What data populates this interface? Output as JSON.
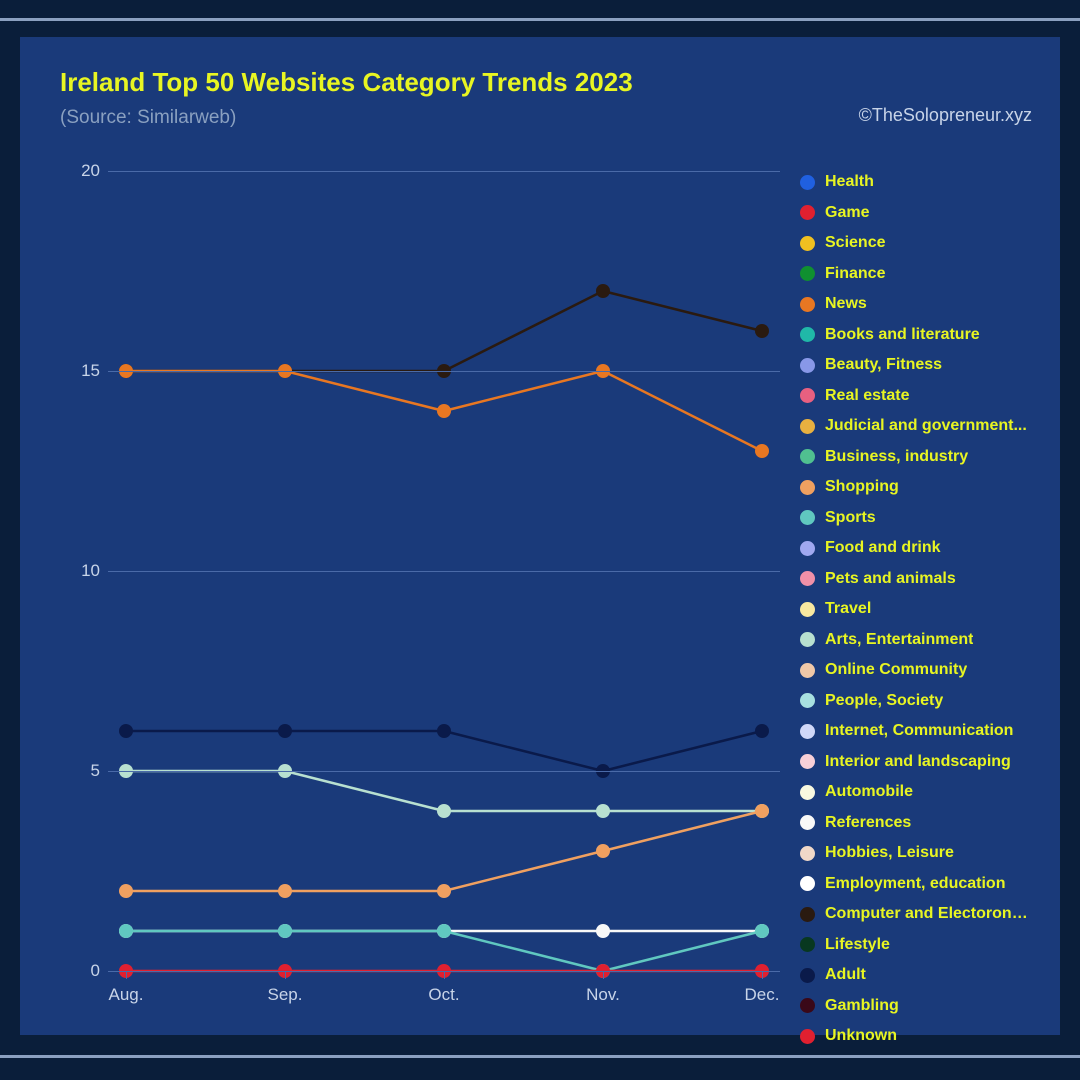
{
  "frame": {
    "outer_bg": "#0a1e3a",
    "card_bg": "#1a3a7a",
    "divider_color": "#8ba0c0"
  },
  "header": {
    "title": "Ireland Top 50 Websites Category Trends 2023",
    "title_color": "#e8f522",
    "title_fontsize": 26,
    "subtitle": "(Source: Similarweb)",
    "subtitle_color": "#8aa0c0",
    "subtitle_fontsize": 19,
    "credit": "©TheSolopreneur.xyz",
    "credit_color": "#c8d4e8",
    "credit_fontsize": 18
  },
  "chart": {
    "type": "line",
    "x_categories": [
      "Aug.",
      "Sep.",
      "Oct.",
      "Nov.",
      "Dec."
    ],
    "ylim": [
      0,
      20
    ],
    "y_ticks": [
      0,
      5,
      10,
      15,
      20
    ],
    "grid_color": "#4a6aa8",
    "axis_label_color": "#c8d4e8",
    "axis_label_fontsize": 17,
    "line_width": 2.5,
    "marker_radius": 7,
    "series": [
      {
        "name": "Computer and Electoronics",
        "color": "#2a1a10",
        "values": [
          15,
          15,
          15,
          17,
          16
        ]
      },
      {
        "name": "News",
        "color": "#e87722",
        "values": [
          15,
          15,
          14,
          15,
          13
        ]
      },
      {
        "name": "Adult",
        "color": "#0a1a4a",
        "values": [
          6,
          6,
          6,
          5,
          6
        ]
      },
      {
        "name": "Arts, Entertainment",
        "color": "#b8e0d0",
        "values": [
          5,
          5,
          4,
          4,
          4
        ]
      },
      {
        "name": "Shopping",
        "color": "#f0a060",
        "values": [
          2,
          2,
          2,
          3,
          4
        ]
      },
      {
        "name": "References",
        "color": "#f8f8f8",
        "values": [
          1,
          1,
          1,
          1,
          1
        ]
      },
      {
        "name": "Sports",
        "color": "#60c8c0",
        "values": [
          1,
          1,
          1,
          0,
          1
        ]
      },
      {
        "name": "Unknown",
        "color": "#e02030",
        "values": [
          0,
          0,
          0,
          0,
          0
        ]
      }
    ]
  },
  "legend": {
    "label_color": "#e8f522",
    "label_fontsize": 16,
    "dot_size": 15,
    "row_height": 30.5,
    "items": [
      {
        "label": "Health",
        "color": "#2060e0"
      },
      {
        "label": "Game",
        "color": "#e02030"
      },
      {
        "label": "Science",
        "color": "#f0c020"
      },
      {
        "label": "Finance",
        "color": "#109030"
      },
      {
        "label": "News",
        "color": "#e87722"
      },
      {
        "label": "Books and literature",
        "color": "#20b8a8"
      },
      {
        "label": "Beauty, Fitness",
        "color": "#8898e8"
      },
      {
        "label": "Real estate",
        "color": "#e86080"
      },
      {
        "label": "Judicial and government...",
        "color": "#e8b040"
      },
      {
        "label": "Business, industry",
        "color": "#50c090"
      },
      {
        "label": "Shopping",
        "color": "#f0a060"
      },
      {
        "label": "Sports",
        "color": "#60c8c0"
      },
      {
        "label": "Food and drink",
        "color": "#a0a8f0"
      },
      {
        "label": "Pets and animals",
        "color": "#f090a8"
      },
      {
        "label": "Travel",
        "color": "#f8e8a0"
      },
      {
        "label": "Arts, Entertainment",
        "color": "#b8e0d0"
      },
      {
        "label": "Online Community",
        "color": "#f0c8a8"
      },
      {
        "label": "People, Society",
        "color": "#a8e0e0"
      },
      {
        "label": "Internet, Communication",
        "color": "#d0d8f8"
      },
      {
        "label": "Interior and landscaping",
        "color": "#f8d0d8"
      },
      {
        "label": "Automobile",
        "color": "#f8f8e0"
      },
      {
        "label": "References",
        "color": "#f8f8f8"
      },
      {
        "label": "Hobbies, Leisure",
        "color": "#f0d8c8"
      },
      {
        "label": "Employment, education",
        "color": "#ffffff"
      },
      {
        "label": "Computer and Electoronics",
        "color": "#2a1a10"
      },
      {
        "label": "Lifestyle",
        "color": "#083820"
      },
      {
        "label": "Adult",
        "color": "#0a1a4a"
      },
      {
        "label": "Gambling",
        "color": "#3a0818"
      },
      {
        "label": "Unknown",
        "color": "#e02030"
      }
    ]
  }
}
